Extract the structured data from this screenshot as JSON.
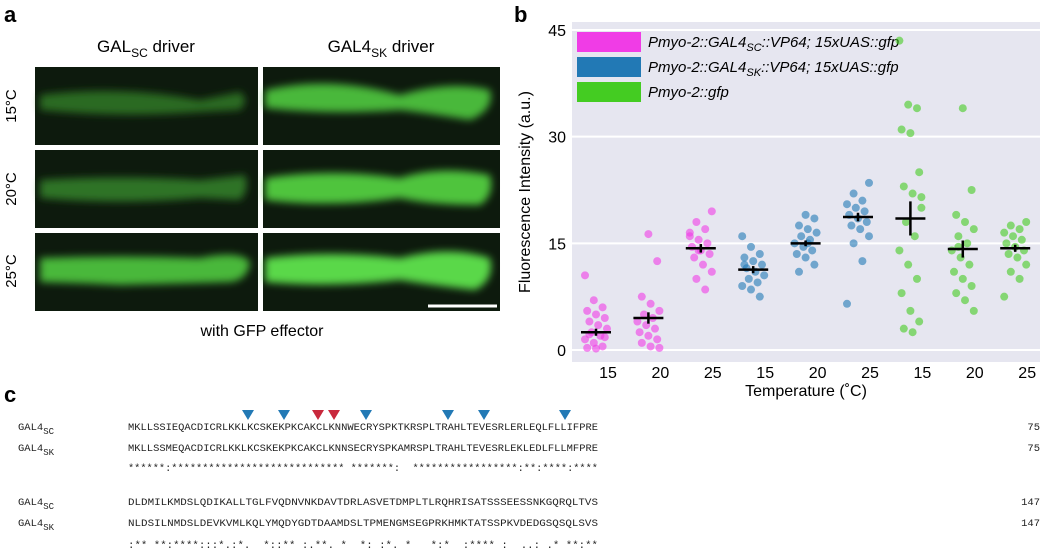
{
  "panel_a": {
    "label": "a",
    "columns": [
      [
        "GAL",
        "SC",
        " driver"
      ],
      [
        "GAL4",
        "SK",
        " driver"
      ]
    ],
    "rows": [
      "15°C",
      "20°C",
      "25°C"
    ],
    "caption": "with GFP effector"
  },
  "chart_data": {
    "type": "strip",
    "panel_label": "b",
    "ylabel": "Fluorescence Intensity (a.u.)",
    "xlabel": "Temperature (˚C)",
    "categories": [
      "15",
      "20",
      "25",
      "15",
      "20",
      "25",
      "15",
      "20",
      "25"
    ],
    "ylim": [
      0,
      45
    ],
    "yticks": [
      0,
      15,
      30,
      45
    ],
    "grid": true,
    "series": [
      {
        "name": [
          "Pmyo-2::GAL4",
          "SC",
          "::VP64; 15xUAS::gfp"
        ],
        "color": "#f03ce6",
        "points": [
          [
            10.5,
            7,
            6,
            5.5,
            5,
            4.5,
            4,
            3.5,
            3,
            2.5,
            2,
            1.5,
            1,
            0.5,
            0.3,
            0.2,
            1.8,
            2.2
          ],
          [
            16.3,
            12.5,
            7.5,
            6.5,
            5.5,
            5,
            4.5,
            4,
            3.5,
            3,
            2.5,
            2,
            1.5,
            1,
            0.5,
            0.3
          ],
          [
            19.5,
            18,
            17,
            16,
            15.5,
            15,
            14.5,
            14,
            13.5,
            13,
            12,
            11,
            10,
            8.5,
            16.5,
            14
          ]
        ],
        "means": [
          2.5,
          4.5,
          14.3
        ],
        "errors": [
          0.5,
          0.8,
          0.6
        ]
      },
      {
        "name": [
          "Pmyo-2::GAL4",
          "SK",
          "::VP64; 15xUAS::gfp"
        ],
        "color": "#2279b5",
        "points": [
          [
            16,
            14.5,
            13.5,
            13,
            12.5,
            12,
            11.5,
            11,
            10.5,
            10,
            9.5,
            9,
            8.5,
            7.5,
            12
          ],
          [
            19,
            18.5,
            17.5,
            17,
            16.5,
            16,
            15.5,
            15,
            14.5,
            14,
            13.5,
            13,
            12,
            11,
            15
          ],
          [
            23.5,
            22,
            21,
            20.5,
            20,
            19.5,
            19,
            18.5,
            18,
            17.5,
            17,
            16,
            15,
            12.5,
            6.5
          ]
        ],
        "means": [
          11.3,
          15,
          18.7
        ],
        "errors": [
          0.5,
          0.4,
          0.6
        ]
      },
      {
        "name": [
          "Pmyo-2::gfp"
        ],
        "color": "#44cc22",
        "points": [
          [
            43.5,
            34.5,
            34,
            31,
            30.5,
            25,
            23,
            22,
            20,
            18,
            16,
            14,
            12,
            10,
            8,
            5.5,
            4,
            3,
            2.5,
            21.5
          ],
          [
            34,
            22.5,
            19,
            18,
            17,
            16,
            15,
            14,
            13,
            12,
            11,
            10,
            9,
            8,
            7,
            5.5,
            14.5
          ],
          [
            18,
            17.5,
            17,
            16.5,
            16,
            15.5,
            15,
            14.5,
            14,
            13.5,
            13,
            12,
            11,
            10,
            7.5
          ]
        ],
        "means": [
          18.5,
          14.2,
          14.3
        ],
        "errors": [
          2.4,
          1.2,
          0.5
        ]
      }
    ]
  },
  "panel_c": {
    "label": "c",
    "blocks": [
      {
        "rows": [
          {
            "name": [
              "GAL4",
              "SC"
            ],
            "sequence": "MKLLSSIEQACDICRLKKLKCSKEKPKCAKCLKNNWECRYSPKTKRSPLTRAHLTEVESRLERLEQLFLLIFPRE",
            "end": 75
          },
          {
            "name": [
              "GAL4",
              "SK"
            ],
            "sequence": "MKLLSSMEQACDICRLKKLKCSKEKPKCAKCLKNNSECRYSPKAMRSPLTRAHLTEVESRLEKLEDLFLLMFPRE",
            "end": 75
          }
        ],
        "consensus": "******:**************************** *******:  *****************:**:****:****"
      },
      {
        "rows": [
          {
            "name": [
              "GAL4",
              "SC"
            ],
            "sequence": "DLDMILKMDSLQDIKALLTGLFVQDNVNKDAVTDRLASVETDMPLTLRQHRISATSSSEESSNKGQRQLTVS",
            "end": 147
          },
          {
            "name": [
              "GAL4",
              "SK"
            ],
            "sequence": "NLDSILNMDSLDEVKVMLKQLYMQDYGDTDAAMDSLTPMENGMSEGPRKHMKTATSSPKVDEDGSQSQLSVS",
            "end": 147
          }
        ],
        "consensus": ":** **:****:::*.:*.  *::** :.**. *  *: :*. *   *:*  :**** :  ..: .* **:**"
      }
    ]
  }
}
